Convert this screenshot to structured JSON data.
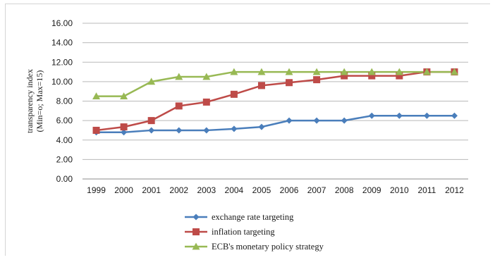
{
  "chart_data": {
    "type": "line",
    "title": "",
    "xlabel": "",
    "ylabel": "transparency   index",
    "ylabel_sub": "(Min=o; Max=15)",
    "ylim": [
      0,
      16
    ],
    "yticks": [
      "0.00",
      "2.00",
      "4.00",
      "6.00",
      "8.00",
      "10.00",
      "12.00",
      "14.00",
      "16.00"
    ],
    "grid": true,
    "legend_position": "bottom",
    "categories": [
      "1999",
      "2000",
      "2001",
      "2002",
      "2003",
      "2004",
      "2005",
      "2006",
      "2007",
      "2008",
      "2009",
      "2010",
      "2011",
      "2012"
    ],
    "series": [
      {
        "name": "exchange rate targeting",
        "color": "#4a7ebb",
        "marker": "diamond",
        "values": [
          4.8,
          4.8,
          5.0,
          5.0,
          5.0,
          5.15,
          5.35,
          6.0,
          6.0,
          6.0,
          6.5,
          6.5,
          6.5,
          6.5
        ]
      },
      {
        "name": "inflation targeting",
        "color": "#be4b48",
        "marker": "square",
        "values": [
          5.0,
          5.35,
          6.0,
          7.5,
          7.9,
          8.7,
          9.6,
          9.9,
          10.2,
          10.6,
          10.6,
          10.6,
          11.0,
          11.0
        ]
      },
      {
        "name": "ECB's monetary policy strategy",
        "color": "#98b954",
        "marker": "triangle",
        "values": [
          8.5,
          8.5,
          10.0,
          10.5,
          10.5,
          11.0,
          11.0,
          11.0,
          11.0,
          11.0,
          11.0,
          11.0,
          11.0,
          11.0
        ]
      }
    ]
  }
}
